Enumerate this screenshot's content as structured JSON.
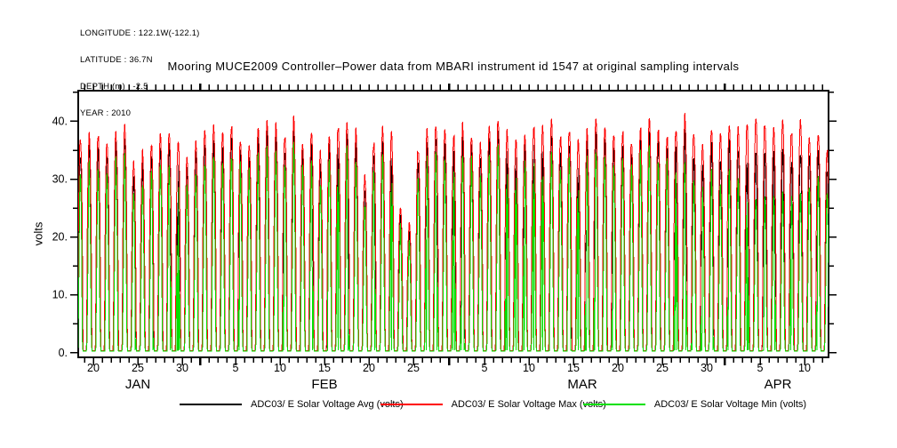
{
  "meta": {
    "longitude": "LONGITUDE : 122.1W(-122.1)",
    "latitude": "LATITUDE : 36.7N",
    "depth": "DEPTH (m) : -2.5",
    "year": "YEAR : 2010"
  },
  "chart_data": {
    "type": "line",
    "title": "Mooring MUCE2009 Controller–Power data from MBARI instrument id 1547 at original sampling intervals",
    "ylabel": "volts",
    "units": "volts",
    "ylim": [
      -0.8,
      45.3
    ],
    "yticks_major": [
      0,
      10,
      20,
      30,
      40
    ],
    "ytick_labels": [
      "0.",
      "10.",
      "20.",
      "30.",
      "40."
    ],
    "yticks_minor": [
      5,
      15,
      25,
      35,
      45
    ],
    "x_origin_date": "2010-01-18",
    "x_range_doy": [
      0.3,
      84.7
    ],
    "xticks": [
      {
        "label": "20",
        "doy": 2
      },
      {
        "label": "25",
        "doy": 7
      },
      {
        "label": "30",
        "doy": 12
      },
      {
        "label": "5",
        "doy": 18
      },
      {
        "label": "10",
        "doy": 23
      },
      {
        "label": "15",
        "doy": 28
      },
      {
        "label": "20",
        "doy": 33
      },
      {
        "label": "25",
        "doy": 38
      },
      {
        "label": "5",
        "doy": 46
      },
      {
        "label": "10",
        "doy": 51
      },
      {
        "label": "15",
        "doy": 56
      },
      {
        "label": "20",
        "doy": 61
      },
      {
        "label": "25",
        "doy": 66
      },
      {
        "label": "30",
        "doy": 71
      },
      {
        "label": "5",
        "doy": 77
      },
      {
        "label": "10",
        "doy": 82
      }
    ],
    "month_labels": [
      {
        "label": "JAN",
        "doy": 7
      },
      {
        "label": "FEB",
        "doy": 28
      },
      {
        "label": "MAR",
        "doy": 57
      },
      {
        "label": "APR",
        "doy": 79
      }
    ],
    "month_start_doys": [
      14,
      42,
      73
    ],
    "series": [
      {
        "name": "ADC03/ E Solar Voltage Avg (volts)",
        "color": "#000000",
        "role": "avg"
      },
      {
        "name": "ADC03/ E Solar Voltage Max (volts)",
        "color": "#ff0000",
        "role": "max"
      },
      {
        "name": "ADC03/ E Solar Voltage Min (volts)",
        "color": "#00e000",
        "role": "min"
      }
    ],
    "daily_envelope": {
      "start_date": "2010-01-18",
      "days": 85,
      "night_level_volts": 0.3,
      "max_peak": [
        37,
        38,
        37.5,
        36.5,
        38,
        39,
        33,
        34.5,
        36,
        37.5,
        38.5,
        37,
        33.5,
        36,
        38.5,
        39.5,
        38,
        39.5,
        37,
        36.5,
        38.5,
        40,
        39,
        37.5,
        40.5,
        36.5,
        38,
        34.5,
        37.5,
        39,
        40,
        38.5,
        30.5,
        36.5,
        39,
        37.5,
        25.5,
        22.5,
        35.5,
        38.5,
        40,
        38.5,
        37.5,
        39.5,
        38,
        36.5,
        39.5,
        40.5,
        38.5,
        36.5,
        38,
        39.5,
        38.5,
        40,
        37.5,
        39,
        36.5,
        38,
        40,
        39,
        37.5,
        38.5,
        36.5,
        39,
        40.5,
        38.5,
        37.5,
        39,
        41,
        38.5,
        36.5,
        39,
        37.5,
        40,
        38.5,
        39.5,
        40.5,
        40,
        39.5,
        40.5,
        38.5,
        40,
        37,
        38.5,
        35.5
      ],
      "min_daytop": [
        32,
        33,
        32.5,
        31.5,
        33,
        34,
        28.5,
        30,
        31.5,
        33,
        33.5,
        32,
        29,
        31.5,
        33.5,
        34.5,
        33,
        34.5,
        32,
        31.5,
        33.5,
        35,
        34,
        32.5,
        35.5,
        31.5,
        33,
        30,
        32.5,
        34,
        35,
        33.5,
        26.5,
        31.5,
        34,
        32.5,
        21.5,
        19,
        30.5,
        33.5,
        35,
        33.5,
        32.5,
        34.5,
        33,
        31.5,
        34.5,
        35.5,
        33.5,
        31.5,
        33,
        34.5,
        33.5,
        35,
        32.5,
        34,
        31.5,
        33,
        35,
        34,
        32.5,
        33.5,
        31.5,
        34,
        35.5,
        33.5,
        32.5,
        31,
        33,
        30.5,
        28.5,
        31,
        29.5,
        32,
        30.5,
        27.5,
        27,
        26,
        27.5,
        27,
        26.5,
        28,
        29,
        30.5,
        27.5
      ]
    }
  }
}
